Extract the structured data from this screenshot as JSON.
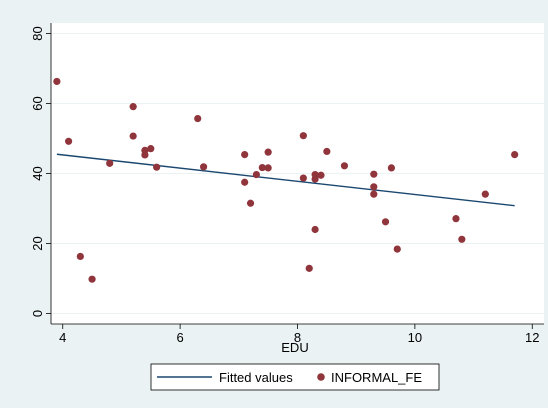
{
  "chart_data": {
    "type": "scatter",
    "xlabel": "EDU",
    "ylabel": "",
    "xlim": [
      3.8,
      12.2
    ],
    "ylim": [
      -3,
      83
    ],
    "xticks": [
      4,
      6,
      8,
      10,
      12
    ],
    "yticks": [
      0,
      20,
      40,
      60,
      80
    ],
    "grid": "y-major",
    "legend_position": "bottom",
    "colors": {
      "plot_bg": "#ffffff",
      "outer_bg": "#eaf2f3",
      "grid": "#eaf2f3",
      "fitted_line": "#1a476f",
      "points": "#90353b"
    },
    "series": [
      {
        "name": "Fitted values",
        "kind": "line",
        "x": [
          3.9,
          11.7
        ],
        "y": [
          45.5,
          30.8
        ]
      },
      {
        "name": "INFORMAL_FE",
        "kind": "scatter",
        "x": [
          3.9,
          4.1,
          4.3,
          4.5,
          4.8,
          5.2,
          5.2,
          5.4,
          5.4,
          5.5,
          5.6,
          6.3,
          6.4,
          7.1,
          7.1,
          7.2,
          7.3,
          7.4,
          7.5,
          7.5,
          8.1,
          8.1,
          8.2,
          8.3,
          8.3,
          8.3,
          8.4,
          8.5,
          8.8,
          9.3,
          9.3,
          9.3,
          9.5,
          9.6,
          9.7,
          10.7,
          10.8,
          11.2,
          11.7
        ],
        "y": [
          66.3,
          49.2,
          16.3,
          9.8,
          42.9,
          59.1,
          50.7,
          46.6,
          45.3,
          47.1,
          41.8,
          55.7,
          41.9,
          45.4,
          37.5,
          31.5,
          39.7,
          41.7,
          46.1,
          41.6,
          50.8,
          38.7,
          12.9,
          39.7,
          38.4,
          24.0,
          39.5,
          46.3,
          42.2,
          39.8,
          36.2,
          34.1,
          26.2,
          41.6,
          18.4,
          27.1,
          21.2,
          34.1,
          45.4
        ]
      }
    ]
  }
}
